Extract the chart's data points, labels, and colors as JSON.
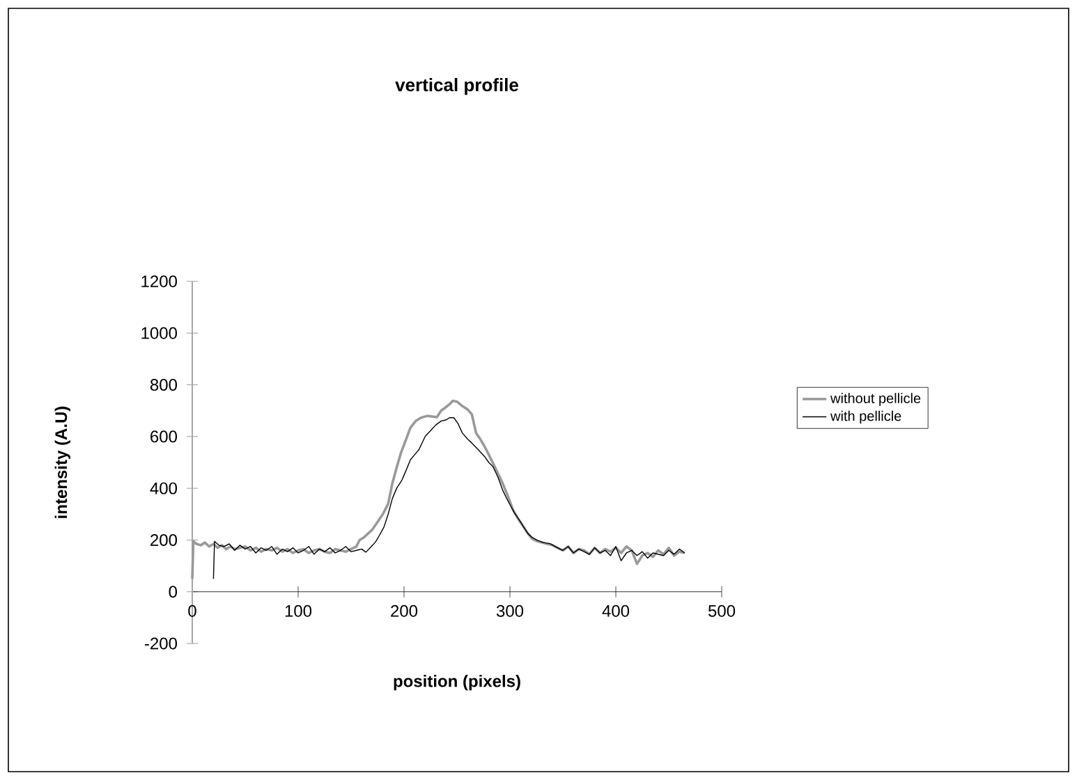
{
  "chart_data": {
    "type": "line",
    "title": "vertical profile",
    "xlabel": "position (pixels)",
    "ylabel": "intensity (A.U)",
    "xlim": [
      0,
      500
    ],
    "xticks": [
      0,
      100,
      200,
      300,
      400,
      500
    ],
    "ylim": [
      -200,
      1200
    ],
    "yticks": [
      -200,
      0,
      200,
      400,
      600,
      800,
      1000,
      1200
    ],
    "grid": false,
    "legend": "right",
    "marker": "none",
    "line_style": "solid",
    "series": [
      {
        "name": "without pellicle",
        "color": "#999999",
        "x": [
          0,
          1,
          4,
          8,
          12,
          16,
          20,
          24,
          28,
          32,
          36,
          40,
          45,
          50,
          55,
          60,
          65,
          70,
          75,
          80,
          85,
          90,
          95,
          100,
          105,
          110,
          115,
          120,
          125,
          130,
          135,
          140,
          145,
          150,
          155,
          158,
          162,
          166,
          170,
          175,
          180,
          185,
          189,
          193,
          197,
          202,
          206,
          211,
          216,
          222,
          231,
          235,
          239,
          243,
          246,
          250,
          255,
          260,
          264,
          268,
          272,
          276,
          280,
          284,
          289,
          293,
          298,
          303,
          308,
          313,
          317,
          321,
          326,
          334,
          340,
          345,
          350,
          355,
          360,
          365,
          370,
          375,
          380,
          385,
          390,
          395,
          400,
          405,
          410,
          415,
          420,
          425,
          430,
          435,
          440,
          445,
          450,
          455,
          460,
          465
        ],
        "values": [
          50,
          195,
          185,
          180,
          190,
          175,
          185,
          170,
          180,
          165,
          175,
          165,
          170,
          175,
          160,
          170,
          155,
          165,
          160,
          170,
          155,
          165,
          150,
          160,
          165,
          150,
          160,
          165,
          155,
          150,
          165,
          160,
          155,
          165,
          175,
          200,
          210,
          225,
          240,
          270,
          300,
          340,
          420,
          480,
          536,
          590,
          634,
          660,
          673,
          680,
          675,
          700,
          712,
          725,
          738,
          735,
          718,
          705,
          686,
          614,
          590,
          562,
          530,
          497,
          455,
          420,
          370,
          316,
          280,
          250,
          225,
          205,
          195,
          186,
          180,
          170,
          160,
          175,
          150,
          165,
          160,
          145,
          170,
          150,
          165,
          155,
          170,
          150,
          175,
          160,
          108,
          140,
          150,
          135,
          160,
          145,
          170,
          140,
          155,
          150
        ]
      },
      {
        "name": "with pellicle",
        "color": "#000000",
        "x": [
          20,
          21,
          25,
          30,
          35,
          40,
          45,
          50,
          55,
          60,
          65,
          70,
          75,
          80,
          85,
          90,
          95,
          100,
          105,
          110,
          115,
          120,
          125,
          130,
          135,
          140,
          145,
          150,
          155,
          160,
          164,
          168,
          173,
          177,
          181,
          185,
          189,
          193,
          198,
          202,
          206,
          210,
          214,
          220,
          226,
          230,
          235,
          240,
          243,
          247,
          251,
          255,
          260,
          264,
          270,
          276,
          280,
          284,
          289,
          293,
          297,
          301,
          305,
          309,
          313,
          317,
          321,
          326,
          332,
          338,
          345,
          350,
          355,
          360,
          365,
          370,
          375,
          380,
          385,
          390,
          395,
          400,
          405,
          410,
          415,
          420,
          425,
          430,
          435,
          440,
          445,
          450,
          455,
          460,
          465
        ],
        "values": [
          50,
          195,
          180,
          175,
          185,
          160,
          180,
          165,
          175,
          150,
          170,
          160,
          175,
          145,
          165,
          155,
          170,
          150,
          160,
          175,
          145,
          165,
          155,
          170,
          150,
          160,
          175,
          155,
          160,
          165,
          153,
          170,
          192,
          220,
          250,
          300,
          361,
          400,
          432,
          470,
          510,
          530,
          549,
          601,
          627,
          645,
          660,
          665,
          673,
          673,
          650,
          614,
          590,
          575,
          550,
          523,
          500,
          484,
          440,
          394,
          360,
          329,
          300,
          277,
          250,
          225,
          210,
          199,
          190,
          186,
          170,
          160,
          175,
          150,
          165,
          155,
          145,
          170,
          150,
          160,
          140,
          175,
          120,
          150,
          160,
          140,
          155,
          130,
          150,
          145,
          140,
          160,
          145,
          165,
          150
        ]
      }
    ]
  }
}
